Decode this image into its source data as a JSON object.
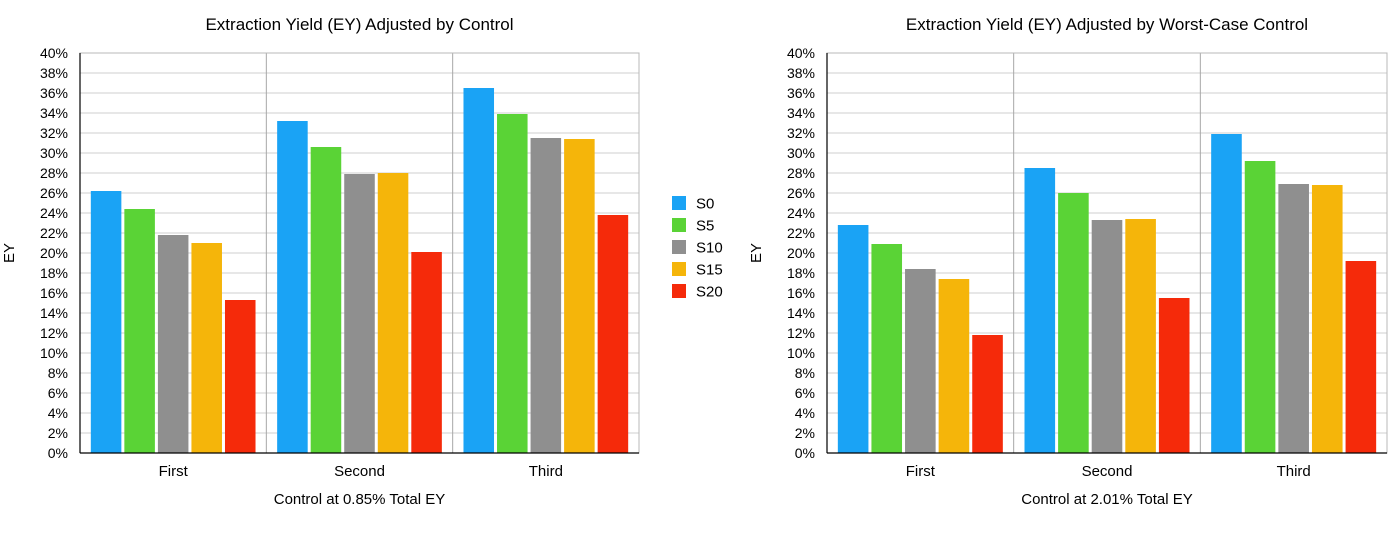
{
  "chart_data": [
    {
      "type": "bar",
      "title": "Extraction Yield (EY) Adjusted by Control",
      "xlabel": "Control at 0.85% Total EY",
      "ylabel": "EY",
      "categories": [
        "First",
        "Second",
        "Third"
      ],
      "ylim": [
        0,
        40
      ],
      "ytick_step": 2,
      "ytick_suffix": "%",
      "grid": true,
      "series": [
        {
          "name": "S0",
          "color": "#1aa3f5",
          "values": [
            26.2,
            33.2,
            36.5
          ]
        },
        {
          "name": "S5",
          "color": "#5ad336",
          "values": [
            24.4,
            30.6,
            33.9
          ]
        },
        {
          "name": "S10",
          "color": "#8f8f8f",
          "values": [
            21.8,
            27.9,
            31.5
          ]
        },
        {
          "name": "S15",
          "color": "#f5b50a",
          "values": [
            21.0,
            28.0,
            31.4
          ]
        },
        {
          "name": "S20",
          "color": "#f52a0a",
          "values": [
            15.3,
            20.1,
            23.8
          ]
        }
      ]
    },
    {
      "type": "bar",
      "title": "Extraction Yield (EY) Adjusted by Worst-Case Control",
      "xlabel": "Control at 2.01% Total EY",
      "ylabel": "EY",
      "categories": [
        "First",
        "Second",
        "Third"
      ],
      "ylim": [
        0,
        40
      ],
      "ytick_step": 2,
      "ytick_suffix": "%",
      "grid": true,
      "series": [
        {
          "name": "S0",
          "color": "#1aa3f5",
          "values": [
            22.8,
            28.5,
            31.9
          ]
        },
        {
          "name": "S5",
          "color": "#5ad336",
          "values": [
            20.9,
            26.0,
            29.2
          ]
        },
        {
          "name": "S10",
          "color": "#8f8f8f",
          "values": [
            18.4,
            23.3,
            26.9
          ]
        },
        {
          "name": "S15",
          "color": "#f5b50a",
          "values": [
            17.4,
            23.4,
            26.8
          ]
        },
        {
          "name": "S20",
          "color": "#f52a0a",
          "values": [
            11.8,
            15.5,
            19.2
          ]
        }
      ]
    }
  ],
  "legend": {
    "placement": "between charts",
    "items": [
      {
        "label": "S0",
        "color": "#1aa3f5"
      },
      {
        "label": "S5",
        "color": "#5ad336"
      },
      {
        "label": "S10",
        "color": "#8f8f8f"
      },
      {
        "label": "S15",
        "color": "#f5b50a"
      },
      {
        "label": "S20",
        "color": "#f52a0a"
      }
    ]
  }
}
